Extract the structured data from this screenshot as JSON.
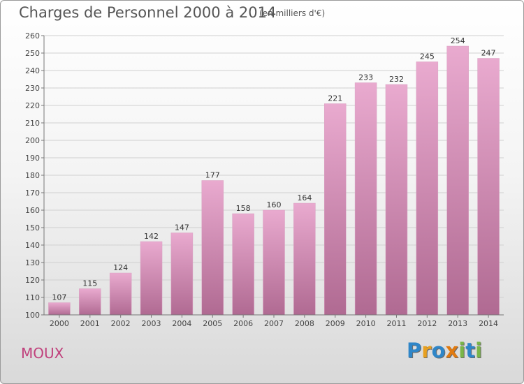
{
  "header": {
    "title": "Charges de Personnel 2000 à 2014",
    "unit": "(en milliers d'€)"
  },
  "footer": {
    "place": "MOUX",
    "logo": {
      "text": "Proxiti",
      "letters": [
        {
          "ch": "P",
          "color": "#2f86c8"
        },
        {
          "ch": "r",
          "color": "#e8a020"
        },
        {
          "ch": "o",
          "color": "#2f86c8"
        },
        {
          "ch": "x",
          "color": "#e07a10"
        },
        {
          "ch": "i",
          "color": "#7ab648"
        },
        {
          "ch": "t",
          "color": "#2f86c8"
        },
        {
          "ch": "i",
          "color": "#7ab648"
        }
      ]
    }
  },
  "colors": {
    "bar_top": "#e9aacf",
    "bar_bottom": "#b06a92",
    "place": "#c0417c",
    "grid": "#d0d0d0"
  },
  "chart_data": {
    "type": "bar",
    "title": "Charges de Personnel 2000 à 2014",
    "xlabel": "",
    "ylabel": "",
    "categories": [
      "2000",
      "2001",
      "2002",
      "2003",
      "2004",
      "2005",
      "2006",
      "2007",
      "2008",
      "2009",
      "2010",
      "2011",
      "2012",
      "2013",
      "2014"
    ],
    "values": [
      107,
      115,
      124,
      142,
      147,
      177,
      158,
      160,
      164,
      221,
      233,
      232,
      245,
      254,
      247
    ],
    "ylim": [
      100,
      260
    ],
    "yticks": [
      100,
      110,
      120,
      130,
      140,
      150,
      160,
      170,
      180,
      190,
      200,
      210,
      220,
      230,
      240,
      250,
      260
    ],
    "grid": true,
    "legend": "none"
  }
}
